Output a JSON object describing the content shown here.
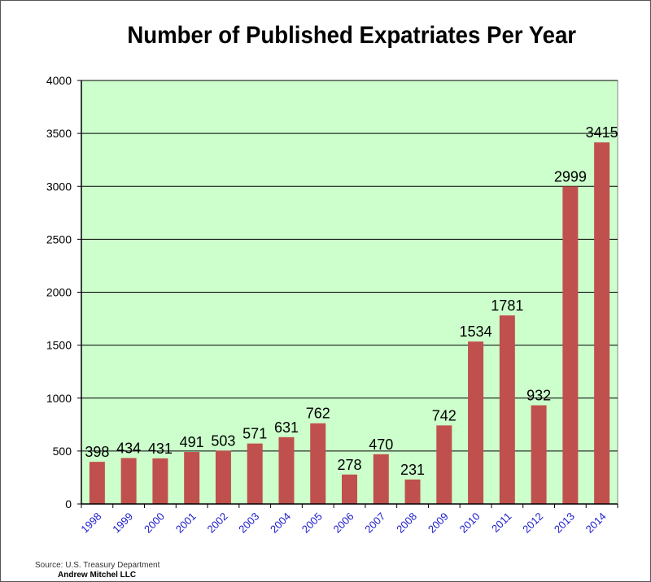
{
  "chart_data": {
    "type": "bar",
    "title": "Number of Published Expatriates Per Year",
    "xlabel": "",
    "ylabel": "",
    "categories": [
      "1998",
      "1999",
      "2000",
      "2001",
      "2002",
      "2003",
      "2004",
      "2005",
      "2006",
      "2007",
      "2008",
      "2009",
      "2010",
      "2011",
      "2012",
      "2013",
      "2014"
    ],
    "values": [
      398,
      434,
      431,
      491,
      503,
      571,
      631,
      762,
      278,
      470,
      231,
      742,
      1534,
      1781,
      932,
      2999,
      3415
    ],
    "ylim": [
      0,
      4000
    ],
    "yticks": [
      0,
      500,
      1000,
      1500,
      2000,
      2500,
      3000,
      3500,
      4000
    ],
    "grid": true,
    "legend": "none",
    "colors": {
      "bar": "#c0504d",
      "plot_bg": "#ccffcc",
      "xtick": "#1a1acc"
    }
  },
  "footer": {
    "source": "Source: U.S. Treasury Department",
    "author": "Andrew Mitchel LLC"
  }
}
